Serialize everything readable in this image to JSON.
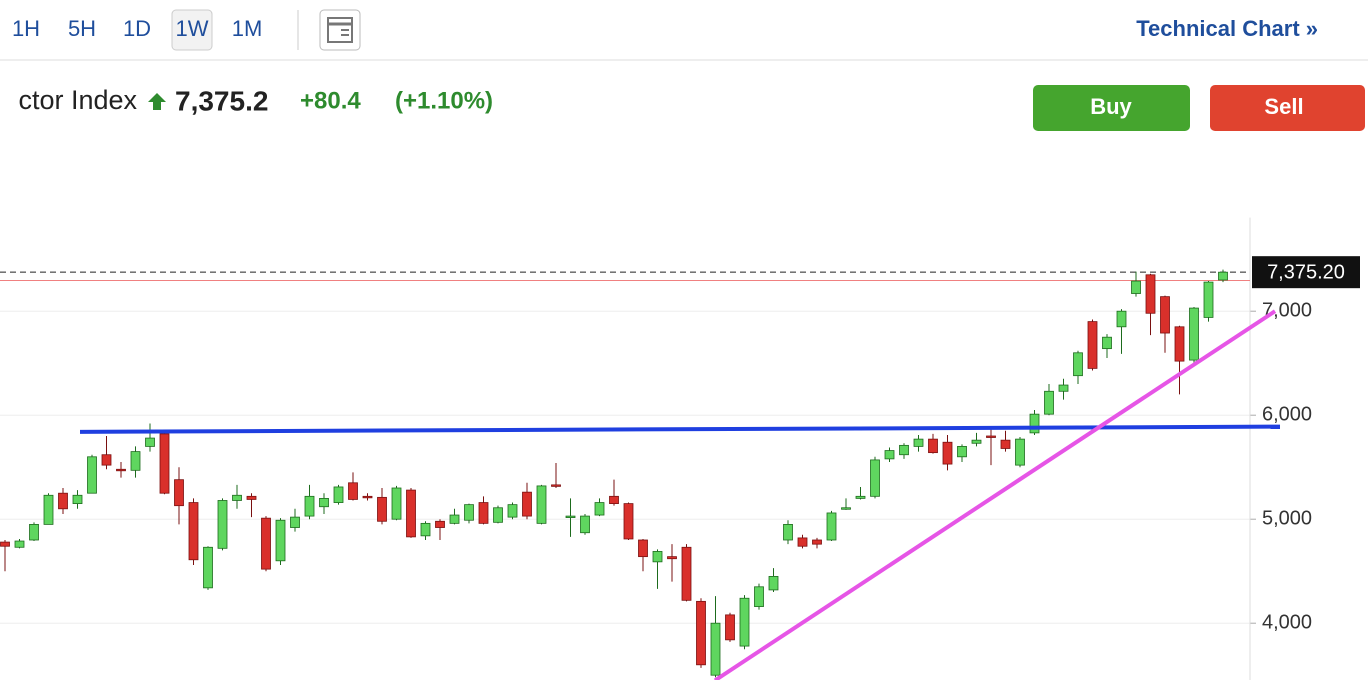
{
  "header": {
    "tabs": [
      "1H",
      "5H",
      "1D",
      "1W",
      "1M"
    ],
    "selected_tab": "1W",
    "link": "Technical Chart »",
    "instrument": "ctor Index",
    "price": "7,375.2",
    "change": "+80.4",
    "change_pct": "(+1.10%)",
    "buy": "Buy",
    "sell": "Sell"
  },
  "chart_data": {
    "type": "candlestick",
    "open": [
      4780,
      4730,
      4800,
      4950,
      5250,
      5150,
      5250,
      5620,
      5480,
      5470,
      5700,
      5820,
      5380,
      5160,
      4340,
      4720,
      5180,
      5220,
      5010,
      4600,
      4920,
      5030,
      5120,
      5160,
      5350,
      5220,
      5210,
      5000,
      5280,
      4840,
      4980,
      4960,
      4990,
      5160,
      4970,
      5020,
      5260,
      4960,
      5330,
      5020,
      4870,
      5040,
      5220,
      5150,
      4800,
      4590,
      4640,
      4730,
      4210,
      3500,
      4080,
      3780,
      4160,
      4320,
      4800,
      4820,
      4800,
      4800,
      5100,
      5200,
      5220,
      5580,
      5620,
      5700,
      5770,
      5740,
      5600,
      5730,
      5800,
      5760,
      5520,
      5830,
      6010,
      6230,
      6380,
      6900,
      6640,
      6850,
      7170,
      7350,
      7140,
      6850,
      6530,
      6940,
      7300
    ],
    "high": [
      4800,
      4810,
      4970,
      5250,
      5300,
      5280,
      5620,
      5800,
      5550,
      5700,
      5920,
      5850,
      5500,
      5200,
      4740,
      5200,
      5330,
      5250,
      5030,
      5010,
      5100,
      5330,
      5250,
      5330,
      5450,
      5250,
      5300,
      5320,
      5300,
      4980,
      5000,
      5100,
      5150,
      5220,
      5130,
      5160,
      5350,
      5330,
      5540,
      5200,
      5050,
      5200,
      5380,
      5160,
      4810,
      4710,
      4760,
      4760,
      4240,
      4260,
      4100,
      4270,
      4380,
      4530,
      4990,
      4850,
      4820,
      5080,
      5200,
      5310,
      5600,
      5690,
      5730,
      5810,
      5820,
      5810,
      5720,
      5830,
      5880,
      5850,
      5790,
      6050,
      6300,
      6350,
      6620,
      6920,
      6780,
      7020,
      7380,
      7360,
      7150,
      6860,
      7040,
      7290,
      7400
    ],
    "low": [
      4500,
      4720,
      4790,
      4950,
      5050,
      5100,
      5250,
      5480,
      5400,
      5400,
      5650,
      5240,
      4950,
      4560,
      4320,
      4700,
      5100,
      5020,
      4500,
      4560,
      4880,
      5000,
      5050,
      5140,
      5180,
      5180,
      4950,
      4990,
      4820,
      4800,
      4800,
      4950,
      4960,
      4950,
      4960,
      5000,
      5000,
      4950,
      5300,
      4830,
      4850,
      5030,
      5130,
      4800,
      4500,
      4330,
      4400,
      4210,
      3570,
      3480,
      3820,
      3750,
      4130,
      4300,
      4760,
      4720,
      4720,
      4790,
      5090,
      5190,
      5200,
      5550,
      5580,
      5650,
      5630,
      5470,
      5550,
      5700,
      5520,
      5650,
      5500,
      5810,
      6000,
      6150,
      6300,
      6430,
      6550,
      6590,
      7140,
      6770,
      6600,
      6200,
      6500,
      6900,
      7280
    ],
    "close": [
      4740,
      4790,
      4950,
      5230,
      5100,
      5230,
      5600,
      5520,
      5470,
      5650,
      5780,
      5250,
      5130,
      4610,
      4730,
      5180,
      5230,
      5190,
      4520,
      4990,
      5020,
      5220,
      5200,
      5310,
      5190,
      5210,
      4980,
      5300,
      4830,
      4960,
      4920,
      5040,
      5140,
      4960,
      5110,
      5140,
      5030,
      5320,
      5320,
      5030,
      5030,
      5160,
      5150,
      4810,
      4640,
      4690,
      4620,
      4220,
      3600,
      4000,
      3840,
      4240,
      4350,
      4450,
      4950,
      4740,
      4760,
      5060,
      5110,
      5220,
      5570,
      5660,
      5710,
      5770,
      5640,
      5530,
      5700,
      5760,
      5790,
      5680,
      5770,
      6010,
      6230,
      6290,
      6600,
      6450,
      6750,
      7000,
      7290,
      6980,
      6790,
      6520,
      7030,
      7280,
      7375
    ],
    "up_color": "#5fd65f",
    "down_color": "#d9302b",
    "ylim": [
      3450,
      7900
    ],
    "yticks": [
      {
        "value": 4000,
        "label": "4,000"
      },
      {
        "value": 5000,
        "label": "5,000"
      },
      {
        "value": 6000,
        "label": "6,000"
      },
      {
        "value": 7000,
        "label": "7,000"
      }
    ],
    "grid": true,
    "last_price": {
      "value": 7375.2,
      "label": "7,375.20"
    },
    "previous_close": 7294.8,
    "trendlines": [
      {
        "color": "#1f3fe0",
        "values": [
          5840,
          5890
        ]
      },
      {
        "color": "#e655e6",
        "values": [
          3450,
          7000
        ]
      }
    ]
  }
}
